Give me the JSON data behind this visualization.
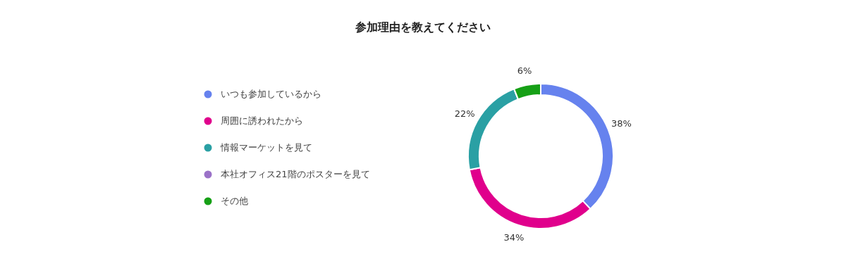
{
  "chart_data": {
    "type": "donut",
    "title": "参加理由を教えてください",
    "categories": [
      "いつも参加しているから",
      "周囲に誘われたから",
      "情報マーケットを見て",
      "本社オフィス21階のポスターを見て",
      "その他"
    ],
    "values": [
      38,
      34,
      22,
      0,
      6
    ],
    "value_labels": [
      "38%",
      "34%",
      "22%",
      null,
      "6%"
    ],
    "colors": [
      "#6682ee",
      "#e0008c",
      "#2aa0a4",
      "#9b72c8",
      "#16a016"
    ],
    "legend": "left"
  }
}
